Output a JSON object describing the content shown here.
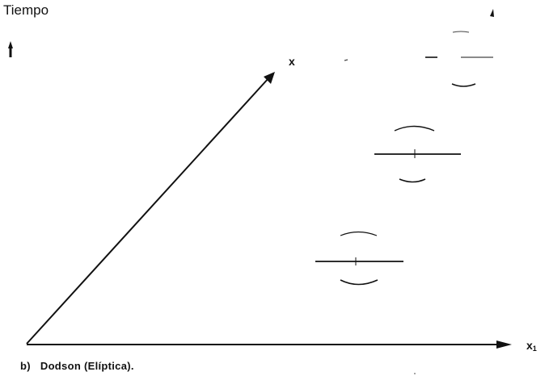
{
  "diagram": {
    "time_axis_label": "Tiempo",
    "x_axis_label": "x",
    "x1_axis_label_main": "x",
    "x1_axis_label_sub": "1",
    "caption_letter": "b)",
    "caption_text": "Dodson (Elíptica)."
  },
  "colors": {
    "ink": "#111111",
    "faint": "#444444",
    "background": "#ffffff"
  }
}
